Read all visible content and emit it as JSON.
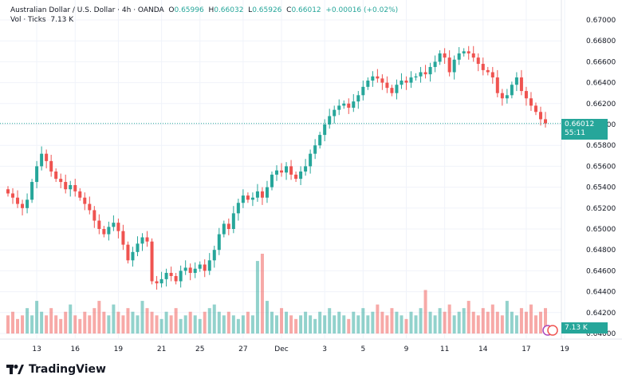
{
  "header": {
    "symbol": "Australian Dollar / U.S. Dollar · 4h · OANDA",
    "open_label": "O",
    "open": "0.65996",
    "high_label": "H",
    "high": "0.66032",
    "low_label": "L",
    "low": "0.65926",
    "close_label": "C",
    "close": "0.66012",
    "change": "+0.00016 (+0.02%)"
  },
  "volume_header": {
    "label": "Vol · Ticks",
    "value": "7.13 K"
  },
  "current_price": {
    "price": "0.66012",
    "countdown": "55:11",
    "volume": "7.13 K"
  },
  "brand": "TradingView",
  "colors": {
    "up": "#26a69a",
    "down": "#ef5350"
  },
  "chart_data": {
    "type": "candlestick",
    "ylim": [
      0.64,
      0.67
    ],
    "y_ticks": [
      "0.67000",
      "0.66800",
      "0.66600",
      "0.66400",
      "0.66200",
      "0.66000",
      "0.65800",
      "0.65600",
      "0.65400",
      "0.65200",
      "0.65000",
      "0.64800",
      "0.64600",
      "0.64400",
      "0.64200",
      "0.64000"
    ],
    "x_ticks": [
      {
        "label": "13",
        "i": 6
      },
      {
        "label": "16",
        "i": 14
      },
      {
        "label": "19",
        "i": 23
      },
      {
        "label": "21",
        "i": 32
      },
      {
        "label": "25",
        "i": 40
      },
      {
        "label": "27",
        "i": 49
      },
      {
        "label": "Dec",
        "i": 57
      },
      {
        "label": "3",
        "i": 66
      },
      {
        "label": "5",
        "i": 74
      },
      {
        "label": "9",
        "i": 83
      },
      {
        "label": "11",
        "i": 91
      },
      {
        "label": "14",
        "i": 99
      },
      {
        "label": "17",
        "i": 108
      },
      {
        "label": "19",
        "i": 116
      }
    ],
    "closes": [
      0.6534,
      0.653,
      0.6524,
      0.652,
      0.6528,
      0.6545,
      0.656,
      0.6572,
      0.6565,
      0.6555,
      0.6548,
      0.6545,
      0.6538,
      0.6542,
      0.6536,
      0.653,
      0.6524,
      0.6518,
      0.6508,
      0.65,
      0.6495,
      0.6502,
      0.6506,
      0.6498,
      0.6485,
      0.647,
      0.6478,
      0.6486,
      0.6492,
      0.6488,
      0.645,
      0.6448,
      0.6452,
      0.6458,
      0.6455,
      0.645,
      0.646,
      0.6463,
      0.6458,
      0.6462,
      0.6466,
      0.646,
      0.647,
      0.648,
      0.6495,
      0.6505,
      0.65,
      0.6515,
      0.6525,
      0.6532,
      0.6528,
      0.653,
      0.6536,
      0.653,
      0.654,
      0.6552,
      0.6556,
      0.6554,
      0.656,
      0.6552,
      0.6548,
      0.6555,
      0.656,
      0.6572,
      0.658,
      0.659,
      0.66,
      0.6608,
      0.6614,
      0.6618,
      0.662,
      0.6616,
      0.6622,
      0.6628,
      0.6636,
      0.6642,
      0.6646,
      0.6644,
      0.664,
      0.6635,
      0.663,
      0.6638,
      0.6642,
      0.664,
      0.6645,
      0.6646,
      0.665,
      0.6648,
      0.6655,
      0.666,
      0.6668,
      0.6664,
      0.665,
      0.6662,
      0.6668,
      0.667,
      0.6668,
      0.6664,
      0.6658,
      0.6652,
      0.665,
      0.6645,
      0.663,
      0.6625,
      0.6628,
      0.6638,
      0.6645,
      0.6632,
      0.6625,
      0.6618,
      0.6612,
      0.6605,
      0.6601
    ],
    "volumes_k": [
      5,
      6,
      4,
      5,
      7,
      5,
      9,
      6,
      5,
      7,
      5,
      4,
      6,
      8,
      5,
      4,
      6,
      5,
      7,
      9,
      6,
      5,
      8,
      6,
      5,
      7,
      6,
      5,
      9,
      7,
      6,
      5,
      4,
      6,
      5,
      7,
      4,
      5,
      6,
      5,
      4,
      6,
      7,
      8,
      6,
      5,
      6,
      5,
      4,
      5,
      6,
      5,
      20,
      22,
      9,
      6,
      5,
      7,
      6,
      5,
      4,
      5,
      6,
      5,
      4,
      6,
      5,
      7,
      5,
      6,
      5,
      4,
      6,
      5,
      7,
      5,
      6,
      8,
      6,
      5,
      7,
      6,
      5,
      4,
      6,
      5,
      7,
      12,
      6,
      5,
      7,
      6,
      8,
      5,
      6,
      7,
      9,
      6,
      5,
      7,
      6,
      8,
      6,
      5,
      9,
      6,
      5,
      7,
      6,
      8,
      5,
      6,
      7
    ]
  }
}
